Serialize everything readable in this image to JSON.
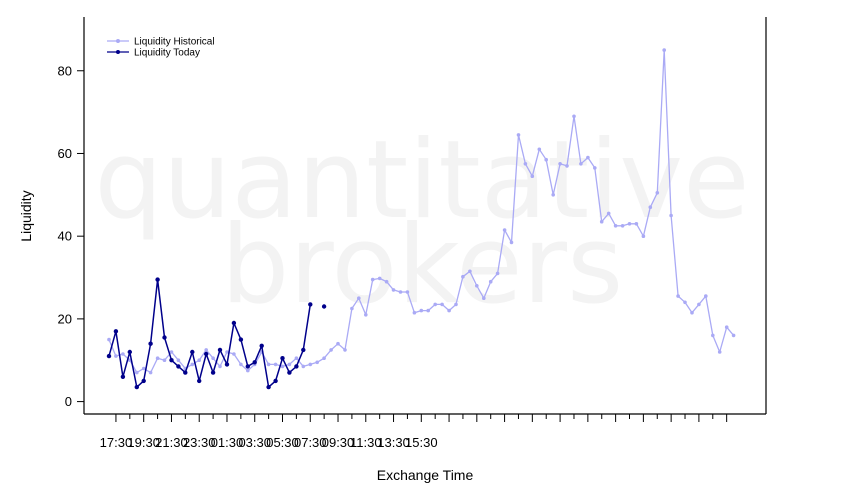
{
  "chart_data": {
    "type": "line",
    "xlabel": "Exchange Time",
    "ylabel": "Liquidity",
    "ylim": [
      -3,
      93
    ],
    "yticks": [
      0,
      20,
      40,
      60,
      80
    ],
    "xtick_labels": [
      "17:30",
      "19:30",
      "21:30",
      "23:30",
      "01:30",
      "03:30",
      "05:30",
      "07:30",
      "09:30",
      "11:30",
      "13:30",
      "15:30"
    ],
    "x_interval_minutes": 30,
    "watermark": [
      "quantitative",
      "brokers"
    ],
    "legend_position": "top-left",
    "colors": {
      "historical": "#aaaaf5",
      "today": "#00008b",
      "axis": "#000000",
      "watermark": "#f3f3f3"
    },
    "series": [
      {
        "name": "Liquidity Historical",
        "color": "#aaaaf5",
        "values": [
          15,
          11,
          11.5,
          10,
          7,
          8,
          7,
          10.5,
          10,
          12,
          10,
          8,
          9,
          10,
          12.5,
          10.5,
          8.5,
          12,
          11.5,
          9,
          7.5,
          9,
          12,
          9,
          9,
          8.5,
          9,
          10.5,
          8.5,
          9,
          9.5,
          10.5,
          12.5,
          14,
          12.5,
          22.5,
          25,
          21,
          29.5,
          29.8,
          29,
          27,
          26.5,
          26.5,
          21.5,
          22,
          22,
          23.5,
          23.5,
          22,
          23.5,
          30.2,
          31.5,
          28,
          25,
          29,
          31,
          41.5,
          38.5,
          64.5,
          57.5,
          54.5,
          61,
          58.5,
          50,
          57.5,
          57,
          69,
          57.5,
          59,
          56.5,
          43.5,
          45.5,
          42.5,
          42.5,
          43,
          43,
          40,
          47,
          50.5,
          85,
          45,
          25.5,
          24,
          21.5,
          23.5,
          25.5,
          16,
          12,
          18,
          16
        ]
      },
      {
        "name": "Liquidity Today",
        "color": "#00008b",
        "values": [
          11,
          17,
          6,
          12,
          3.5,
          5,
          14,
          29.5,
          15.5,
          10,
          8.5,
          7,
          12,
          5,
          11.5,
          7,
          12.5,
          9,
          19,
          15,
          8.5,
          9.5,
          13.5,
          3.5,
          5,
          10.5,
          7,
          8.5,
          12.5,
          23.5,
          null,
          23
        ]
      }
    ]
  }
}
